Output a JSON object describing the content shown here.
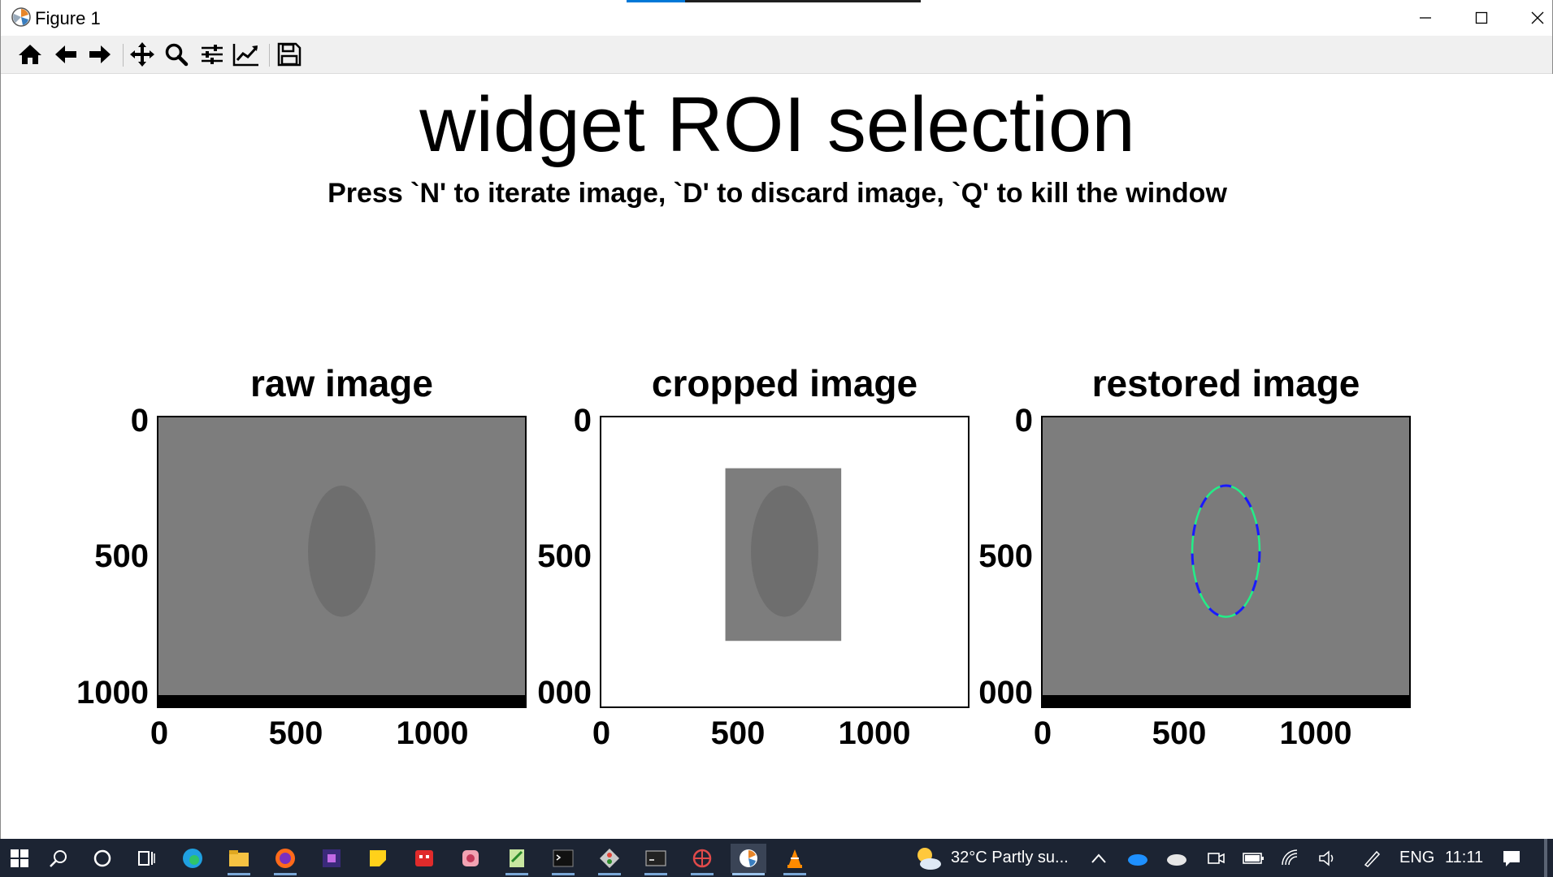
{
  "window": {
    "title": "Figure 1",
    "minimize_icon": "minimize-icon",
    "maximize_icon": "maximize-icon",
    "close_icon": "close-icon"
  },
  "toolbar": {
    "buttons": [
      {
        "name": "home",
        "icon": "home-icon"
      },
      {
        "name": "back",
        "icon": "arrow-left-icon"
      },
      {
        "name": "forward",
        "icon": "arrow-right-icon"
      },
      {
        "name": "pan",
        "icon": "move-icon"
      },
      {
        "name": "zoom",
        "icon": "magnifier-icon"
      },
      {
        "name": "configure-subplots",
        "icon": "sliders-icon"
      },
      {
        "name": "edit-axis",
        "icon": "line-chart-icon"
      },
      {
        "name": "save",
        "icon": "floppy-icon"
      }
    ]
  },
  "figure": {
    "suptitle": "widget ROI selection",
    "subtitle": "Press `N' to iterate image, `D' to discard image, `Q' to kill the window"
  },
  "chart_data": [
    {
      "type": "image",
      "title": "raw image",
      "yticks": [
        "0",
        "500",
        "1000"
      ],
      "xticks": [
        "0",
        "500",
        "1000"
      ],
      "xlim": [
        0,
        1360
      ],
      "ylim": [
        1080,
        0
      ],
      "background_color": "#7d7d7d",
      "object": {
        "shape": "ellipse",
        "center": [
          680,
          500
        ],
        "radius_x": 125,
        "radius_y": 245,
        "color": "#6e6e6e"
      }
    },
    {
      "type": "image",
      "title": "cropped image",
      "yticks": [
        "0",
        "500",
        "000"
      ],
      "xticks": [
        "0",
        "500",
        "1000"
      ],
      "xlim": [
        0,
        1360
      ],
      "ylim": [
        1080,
        0
      ],
      "background_color": "#ffffff",
      "crop": {
        "x0": 460,
        "x1": 890,
        "y0": 190,
        "y1": 835,
        "color": "#7d7d7d"
      },
      "object": {
        "shape": "ellipse",
        "center": [
          680,
          500
        ],
        "radius_x": 125,
        "radius_y": 245,
        "color": "#6e6e6e"
      }
    },
    {
      "type": "image",
      "title": "restored image",
      "yticks": [
        "0",
        "500",
        "000"
      ],
      "xticks": [
        "0",
        "500",
        "1000"
      ],
      "xlim": [
        0,
        1360
      ],
      "ylim": [
        1080,
        0
      ],
      "background_color": "#7d7d7d",
      "object": {
        "shape": "ellipse",
        "center": [
          680,
          500
        ],
        "radius_x": 125,
        "radius_y": 245,
        "color": "#7b7b7b"
      },
      "overlays": [
        {
          "name": "fit contour",
          "color": "#22ee88",
          "style": "solid"
        },
        {
          "name": "detected edge",
          "color": "#1a1aff",
          "style": "dashed"
        }
      ]
    }
  ],
  "taskbar": {
    "weather": "32°C  Partly su...",
    "language": "ENG",
    "time": "11:11",
    "apps": [
      "edge-icon",
      "file-explorer-icon",
      "firefox-icon",
      "app-purple-icon",
      "sticky-notes-icon",
      "app-red-icon",
      "app-pink-icon",
      "notepad-plus-icon",
      "terminal-icon",
      "git-icon",
      "cmd-icon",
      "app-web-icon",
      "python-figure-icon",
      "vlc-icon"
    ]
  }
}
